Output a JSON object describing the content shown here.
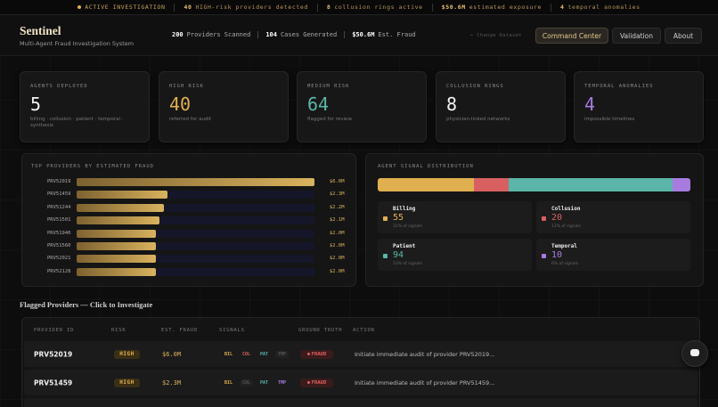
{
  "ticker": {
    "status": "ACTIVE INVESTIGATION",
    "items": [
      {
        "value": "40",
        "text": "HIGH-risk providers detected"
      },
      {
        "value": "8",
        "text": "collusion rings active"
      },
      {
        "value": "$50.6M",
        "text": "estimated exposure"
      },
      {
        "value": "4",
        "text": "temporal anomalies"
      }
    ]
  },
  "header": {
    "title": "Sentinel",
    "subtitle": "Multi-Agent Fraud Investigation System",
    "stats": [
      {
        "value": "200",
        "label": "Providers Scanned"
      },
      {
        "value": "104",
        "label": "Cases Generated"
      },
      {
        "value": "$50.6M",
        "label": "Est. Fraud"
      }
    ],
    "change_dataset": "← Change Dataset",
    "nav": [
      "Command Center",
      "Validation",
      "About"
    ],
    "active_nav": 0
  },
  "kpis": [
    {
      "label": "AGENTS DEPLOYED",
      "value": "5",
      "note": "billing · collusion · patient · temporal · synthesis",
      "color": "#f2f2f2"
    },
    {
      "label": "HIGH RISK",
      "value": "40",
      "note": "referred for audit",
      "color": "#e0b050"
    },
    {
      "label": "MEDIUM RISK",
      "value": "64",
      "note": "flagged for review",
      "color": "#5bb5a8"
    },
    {
      "label": "COLLUSION RINGS",
      "value": "8",
      "note": "physician-linked networks",
      "color": "#f2f2f2"
    },
    {
      "label": "TEMPORAL ANOMALIES",
      "value": "4",
      "note": "impossible timelines",
      "color": "#a77be0"
    }
  ],
  "top_providers": {
    "title": "TOP PROVIDERS BY ESTIMATED FRAUD",
    "categories": [
      "PRV52019",
      "PRV51459",
      "PRV51244",
      "PRV51501",
      "PRV51940",
      "PRV51560",
      "PRV52021",
      "PRV52128"
    ],
    "values": [
      6.0,
      2.3,
      2.2,
      2.1,
      2.0,
      2.0,
      2.0,
      2.0
    ],
    "value_labels": [
      "$6.0M",
      "$2.3M",
      "$2.2M",
      "$2.1M",
      "$2.0M",
      "$2.0M",
      "$2.0M",
      "$2.0M"
    ]
  },
  "signal_distribution": {
    "title": "AGENT SIGNAL DISTRIBUTION",
    "series": [
      {
        "name": "Billing",
        "value": 55,
        "share": "31% of signals",
        "color": "#e0b050"
      },
      {
        "name": "Collusion",
        "value": 20,
        "share": "11% of signals",
        "color": "#d96060"
      },
      {
        "name": "Patient",
        "value": 94,
        "share": "53% of signals",
        "color": "#5bb5a8"
      },
      {
        "name": "Temporal",
        "value": 10,
        "share": "6% of signals",
        "color": "#a77be0"
      }
    ]
  },
  "flagged": {
    "title": "Flagged Providers — Click to Investigate",
    "columns": [
      "PROVIDER ID",
      "RISK",
      "EST. FRAUD",
      "SIGNALS",
      "GROUND TRUTH",
      "ACTION"
    ],
    "signal_types": [
      {
        "label": "BIL",
        "color": "#e0b050"
      },
      {
        "label": "COL",
        "color": "#d96060"
      },
      {
        "label": "PAT",
        "color": "#5bb5a8"
      },
      {
        "label": "TMP",
        "color": "#a77be0"
      }
    ],
    "rows": [
      {
        "id": "PRV52019",
        "risk": "HIGH",
        "fraud": "$6.0M",
        "signals": [
          true,
          true,
          true,
          false
        ],
        "truth": "FRAUD",
        "action": "Initiate immediate audit of provider PRV52019..."
      },
      {
        "id": "PRV51459",
        "risk": "HIGH",
        "fraud": "$2.3M",
        "signals": [
          true,
          false,
          true,
          true
        ],
        "truth": "FRAUD",
        "action": "Initiate immediate audit of provider PRV51459..."
      }
    ]
  }
}
